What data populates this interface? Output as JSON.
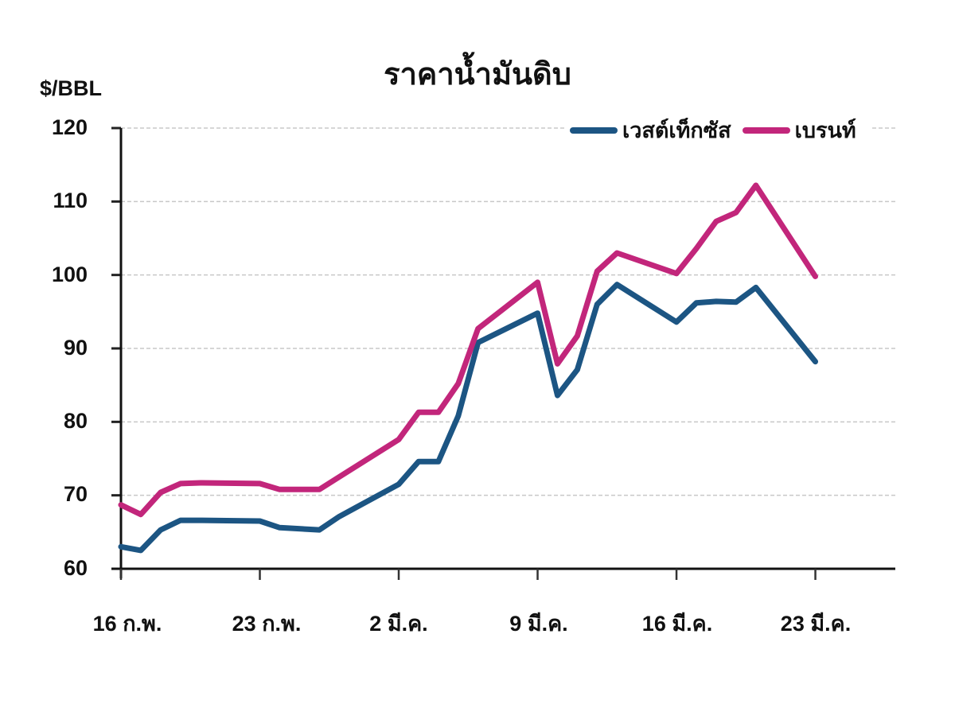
{
  "chart_data": {
    "type": "line",
    "title": "ราคาน้ำมันดิบ",
    "ylabel": "$/BBL",
    "xlabel": "",
    "ylim": [
      60,
      120
    ],
    "yticks": [
      60,
      70,
      80,
      90,
      100,
      110,
      120
    ],
    "xtick_labels": [
      "16 ก.พ.",
      "23 ก.พ.",
      "2 มี.ค.",
      "9 มี.ค.",
      "16 มี.ค.",
      "23 มี.ค."
    ],
    "grid": "horizontal dashed",
    "legend_position": "top-right",
    "x_day_offsets": [
      0,
      1,
      2,
      3,
      4,
      7,
      8,
      10,
      11,
      14,
      15,
      16,
      17,
      18,
      21,
      22,
      23,
      24,
      25,
      28,
      29,
      30,
      31,
      32,
      35
    ],
    "series": [
      {
        "name": "เวสต์เท็กซัส",
        "color": "#1c5583",
        "values": [
          63.0,
          62.5,
          65.3,
          66.6,
          66.6,
          66.5,
          65.6,
          65.3,
          67.1,
          71.5,
          74.6,
          74.6,
          80.8,
          90.8,
          94.8,
          83.6,
          87.1,
          96.0,
          98.7,
          93.6,
          96.2,
          96.4,
          96.3,
          98.3,
          88.2
        ],
        "points_x": [
          0,
          1,
          2,
          3,
          4,
          7,
          8,
          10,
          11,
          14,
          15,
          16,
          17,
          18,
          21,
          22,
          23,
          24,
          25,
          28,
          29,
          30,
          31,
          32,
          35
        ]
      },
      {
        "name": "เบรนท์",
        "color": "#c2267b",
        "values": [
          68.7,
          67.4,
          70.4,
          71.6,
          71.7,
          71.6,
          70.8,
          70.8,
          72.5,
          77.6,
          81.3,
          81.3,
          85.2,
          92.7,
          99.0,
          87.9,
          91.7,
          100.5,
          103.0,
          100.2,
          103.6,
          107.3,
          108.5,
          112.2,
          99.8
        ],
        "points_x": [
          0,
          1,
          2,
          3,
          4,
          7,
          8,
          10,
          11,
          14,
          15,
          16,
          17,
          18,
          21,
          22,
          23,
          24,
          25,
          28,
          29,
          30,
          31,
          32,
          35
        ]
      }
    ]
  },
  "labels": {
    "title": "ราคาน้ำมันดิบ",
    "yunit": "$/BBL",
    "legend_wti": "เวสต์เท็กซัส",
    "legend_brent": "เบรนท์",
    "yticks": [
      "120",
      "110",
      "100",
      "90",
      "80",
      "70",
      "60"
    ],
    "xticks": [
      "16 ก.พ.",
      "23 ก.พ.",
      "2 มี.ค.",
      "9 มี.ค.",
      "16 มี.ค.",
      "23 มี.ค."
    ]
  }
}
